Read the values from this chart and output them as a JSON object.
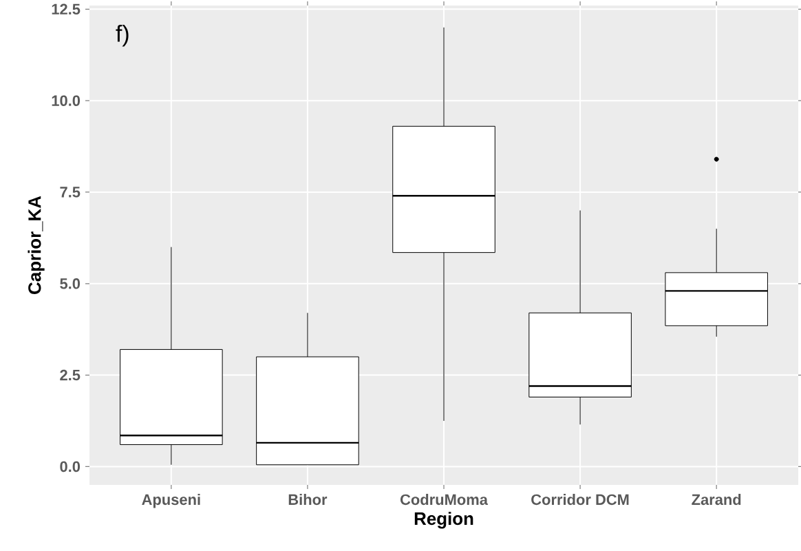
{
  "chart_data": {
    "type": "box",
    "xlabel": "Region",
    "ylabel": "Caprior_KA",
    "annotations": [
      "f)"
    ],
    "categories": [
      "Apuseni",
      "Bihor",
      "CodruMoma",
      "Corridor DCM",
      "Zarand"
    ],
    "boxes": [
      {
        "low": 0.05,
        "q1": 0.6,
        "median": 0.85,
        "q3": 3.2,
        "high": 6.0
      },
      {
        "low": 0.05,
        "q1": 0.05,
        "median": 0.65,
        "q3": 3.0,
        "high": 4.2
      },
      {
        "low": 1.25,
        "q1": 5.85,
        "median": 7.4,
        "q3": 9.3,
        "high": 12.0
      },
      {
        "low": 1.15,
        "q1": 1.9,
        "median": 2.2,
        "q3": 4.2,
        "high": 7.0
      },
      {
        "low": 3.55,
        "q1": 3.85,
        "median": 4.8,
        "q3": 5.3,
        "high": 6.5,
        "outliers": [
          8.4
        ]
      }
    ],
    "ylim": [
      -0.5,
      12.6
    ],
    "yticks": [
      {
        "value": 0,
        "label": "0.0"
      },
      2.5,
      {
        "value": 5,
        "label": "5.0"
      },
      7.5,
      {
        "value": 10,
        "label": "10.0"
      },
      12.5
    ],
    "grid": true
  }
}
